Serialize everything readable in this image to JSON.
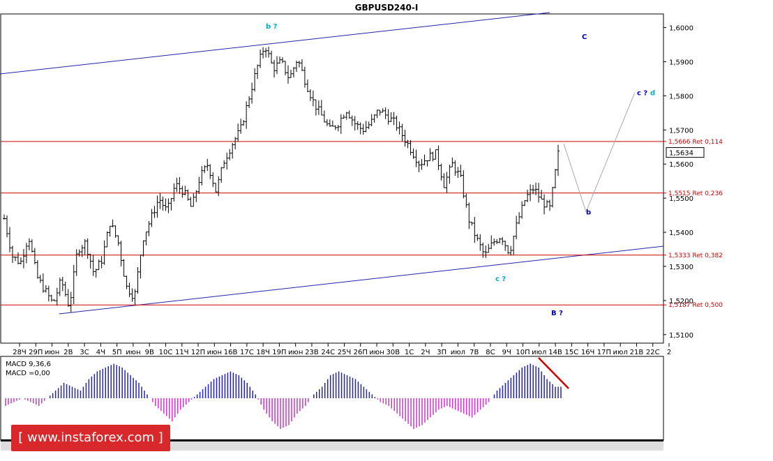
{
  "title": "GBPUSD240-I",
  "price_axis": [
    "1,6000",
    "1,5900",
    "1,5800",
    "1,5700",
    "1,5600",
    "1,5500",
    "1,5400",
    "1,5300",
    "1,5200",
    "1,5100"
  ],
  "current_price": "1,5634",
  "fib_levels": [
    {
      "label": "1,5666 Ret 0,114",
      "value": 1.5666
    },
    {
      "label": "1,5515 Ret 0,236",
      "value": 1.5515
    },
    {
      "label": "1,5333 Ret 0,382",
      "value": 1.5333
    },
    {
      "label": "1,5187 Ret 0,500",
      "value": 1.5187
    }
  ],
  "x_ticks": [
    "28Ч",
    "29П",
    "июн",
    "2В",
    "3С",
    "4Ч",
    "5П",
    "июн",
    "9В",
    "10С",
    "11Ч",
    "12П",
    "июн",
    "16В",
    "17С",
    "18Ч",
    "19П",
    "июн",
    "23В",
    "24С",
    "25Ч",
    "26П",
    "июн",
    "30В",
    "1С",
    "2Ч",
    "3П",
    "июл",
    "7В",
    "8С",
    "9Ч",
    "10П",
    "июл",
    "14В",
    "15С",
    "16Ч",
    "17П",
    "июл",
    "21В",
    "22С",
    "2"
  ],
  "macd": {
    "label": "MACD 9,36,6",
    "value_label": "MACD =0,00"
  },
  "colors": {
    "bull": "#2222bb",
    "bear": "#cc33cc",
    "channel": "#2222aa",
    "fib": "#cc0000",
    "wave_blue": "#0000cc",
    "wave_teal": "#00aacc"
  },
  "watermark": "[ www.instaforex.com ]",
  "chart_data": {
    "type": "ohlc",
    "title": "GBPUSD240-I",
    "ylim": [
      1.5075,
      1.604
    ],
    "x_range": [
      "28Ч",
      "2"
    ],
    "close_path": [
      1.544,
      1.533,
      1.531,
      1.539,
      1.527,
      1.523,
      1.519,
      1.526,
      1.518,
      1.535,
      1.537,
      1.528,
      1.532,
      1.543,
      1.537,
      1.524,
      1.521,
      1.538,
      1.544,
      1.55,
      1.546,
      1.554,
      1.552,
      1.547,
      1.556,
      1.56,
      1.552,
      1.561,
      1.566,
      1.57,
      1.579,
      1.588,
      1.595,
      1.588,
      1.59,
      1.585,
      1.591,
      1.584,
      1.578,
      1.574,
      1.57,
      1.572,
      1.576,
      1.572,
      1.57,
      1.572,
      1.576,
      1.574,
      1.572,
      1.568,
      1.564,
      1.56,
      1.562,
      1.563,
      1.554,
      1.56,
      1.556,
      1.544,
      1.538,
      1.533,
      1.537,
      1.539,
      1.534,
      1.543,
      1.55,
      1.553,
      1.549,
      1.547,
      1.563
    ],
    "closes_shown": "approximate",
    "fib_retracements": [
      {
        "label": "1,5666 Ret 0,114",
        "value": 1.5666
      },
      {
        "label": "1,5515 Ret 0,236",
        "value": 1.5515
      },
      {
        "label": "1,5333 Ret 0,382",
        "value": 1.5333
      },
      {
        "label": "1,5187 Ret 0,500",
        "value": 1.5187
      }
    ],
    "last_price": 1.5634,
    "wave_labels": [
      {
        "text": "b ?",
        "color": "#00aacc",
        "price": 1.6005
      },
      {
        "text": "C",
        "color": "#0000cc",
        "price": 1.5975
      },
      {
        "text": "c ?",
        "color": "#0000cc",
        "price": 1.581
      },
      {
        "text": "d",
        "color": "#00aacc",
        "price": 1.581
      },
      {
        "text": "b",
        "color": "#0000cc",
        "price": 1.546
      },
      {
        "text": "B ?",
        "color": "#0000cc",
        "price": 1.5165
      },
      {
        "text": "c ?",
        "color": "#00aacc",
        "price": 1.5265
      }
    ],
    "projection": [
      1.566,
      1.546,
      1.581
    ],
    "macd_series": [
      -2,
      -1,
      0,
      -1,
      -2,
      0,
      2,
      4,
      3,
      2,
      5,
      7,
      8,
      9,
      8,
      6,
      4,
      1,
      -2,
      -4,
      -6,
      -3,
      -1,
      1,
      3,
      5,
      6,
      7,
      6,
      4,
      1,
      -3,
      -6,
      -8,
      -7,
      -4,
      -2,
      1,
      3,
      6,
      7,
      6,
      5,
      3,
      1,
      -1,
      -2,
      -4,
      -6,
      -8,
      -7,
      -5,
      -3,
      -2,
      -3,
      -4,
      -5,
      -3,
      -1,
      2,
      4,
      6,
      8,
      9,
      8,
      5,
      3
    ]
  }
}
